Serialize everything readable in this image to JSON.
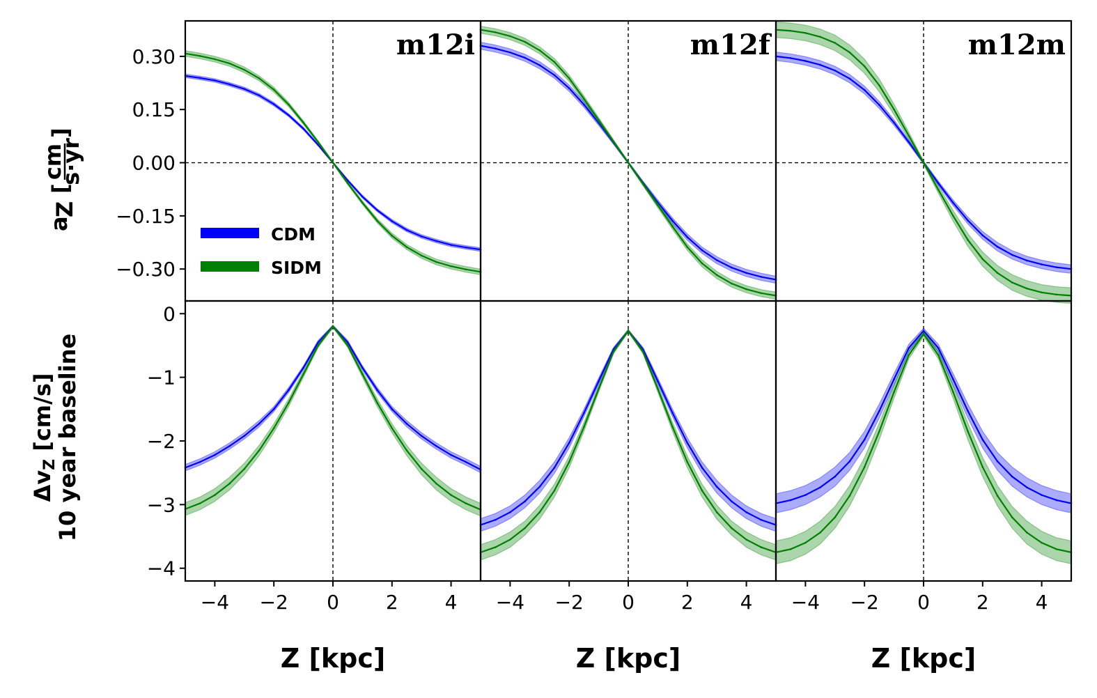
{
  "chart_data": {
    "type": "line",
    "x": [
      -5,
      -4.5,
      -4,
      -3.5,
      -3,
      -2.5,
      -2,
      -1.5,
      -1,
      -0.5,
      0,
      0.5,
      1,
      1.5,
      2,
      2.5,
      3,
      3.5,
      4,
      4.5,
      5
    ],
    "xlim": [
      -5,
      5
    ],
    "xticks": [
      -4,
      -2,
      0,
      2,
      4
    ],
    "xtick_labels": [
      "−4",
      "−2",
      "0",
      "2",
      "4"
    ],
    "xlabel": "Z [kpc]",
    "top_row": {
      "ylabel_main": "a",
      "ylabel_sub": "Z",
      "ylabel_unit_num": "cm",
      "ylabel_unit_den": "s·yr",
      "ylim": [
        -0.39,
        0.4
      ],
      "yticks": [
        0.3,
        0.15,
        0.0,
        -0.15,
        -0.3
      ],
      "ytick_labels": [
        "0.30",
        "0.15",
        "0.00",
        "−0.15",
        "−0.30"
      ]
    },
    "bottom_row": {
      "ylabel_line1_main": "Δv",
      "ylabel_line1_sub": "Z",
      "ylabel_line1_unit": " [cm/s]",
      "ylabel_line2": "10 year baseline",
      "ylim": [
        -4.2,
        0.2
      ],
      "yticks": [
        0,
        -1,
        -2,
        -3,
        -4
      ],
      "ytick_labels": [
        "0",
        "−1",
        "−2",
        "−3",
        "−4"
      ]
    },
    "legend": [
      {
        "label": "CDM",
        "color": "#0000ff"
      },
      {
        "label": "SIDM",
        "color": "#008000"
      }
    ],
    "panels": [
      {
        "title": "m12i",
        "accel": [
          {
            "name": "CDM",
            "color": "#0000ff",
            "values": [
              0.245,
              0.239,
              0.232,
              0.221,
              0.208,
              0.19,
              0.165,
              0.134,
              0.096,
              0.05,
              0.0,
              -0.05,
              -0.096,
              -0.134,
              -0.165,
              -0.19,
              -0.208,
              -0.221,
              -0.232,
              -0.239,
              -0.245
            ],
            "err": [
              0.005,
              0.005,
              0.005,
              0.005,
              0.005,
              0.005,
              0.005,
              0.004,
              0.004,
              0.003,
              0.002,
              0.003,
              0.004,
              0.004,
              0.005,
              0.005,
              0.005,
              0.005,
              0.005,
              0.005,
              0.005
            ]
          },
          {
            "name": "SIDM",
            "color": "#008000",
            "values": [
              0.308,
              0.301,
              0.292,
              0.28,
              0.262,
              0.238,
              0.206,
              0.164,
              0.113,
              0.058,
              0.0,
              -0.058,
              -0.113,
              -0.164,
              -0.206,
              -0.238,
              -0.262,
              -0.28,
              -0.292,
              -0.301,
              -0.308
            ],
            "err": [
              0.008,
              0.008,
              0.008,
              0.008,
              0.008,
              0.007,
              0.007,
              0.006,
              0.005,
              0.004,
              0.003,
              0.004,
              0.005,
              0.006,
              0.007,
              0.007,
              0.008,
              0.008,
              0.008,
              0.008,
              0.008
            ]
          }
        ],
        "dv": [
          {
            "name": "CDM",
            "color": "#0000ff",
            "values": [
              -2.42,
              -2.33,
              -2.22,
              -2.08,
              -1.92,
              -1.73,
              -1.5,
              -1.2,
              -0.85,
              -0.45,
              -0.2,
              -0.45,
              -0.85,
              -1.2,
              -1.5,
              -1.73,
              -1.92,
              -2.08,
              -2.22,
              -2.33,
              -2.45
            ],
            "err": [
              0.05,
              0.05,
              0.05,
              0.05,
              0.05,
              0.05,
              0.04,
              0.04,
              0.03,
              0.03,
              0.02,
              0.03,
              0.03,
              0.04,
              0.04,
              0.05,
              0.05,
              0.05,
              0.05,
              0.05,
              0.05
            ]
          },
          {
            "name": "SIDM",
            "color": "#008000",
            "values": [
              -3.07,
              -2.98,
              -2.85,
              -2.67,
              -2.44,
              -2.15,
              -1.8,
              -1.4,
              -0.95,
              -0.5,
              -0.2,
              -0.5,
              -0.95,
              -1.4,
              -1.8,
              -2.15,
              -2.44,
              -2.67,
              -2.85,
              -2.98,
              -3.08
            ],
            "err": [
              0.1,
              0.1,
              0.1,
              0.1,
              0.09,
              0.08,
              0.07,
              0.06,
              0.05,
              0.03,
              0.02,
              0.03,
              0.05,
              0.06,
              0.07,
              0.08,
              0.09,
              0.1,
              0.1,
              0.1,
              0.1
            ]
          }
        ]
      },
      {
        "title": "m12f",
        "accel": [
          {
            "name": "CDM",
            "color": "#0000ff",
            "values": [
              0.33,
              0.322,
              0.311,
              0.296,
              0.275,
              0.247,
              0.21,
              0.164,
              0.112,
              0.057,
              0.0,
              -0.057,
              -0.112,
              -0.164,
              -0.21,
              -0.247,
              -0.275,
              -0.296,
              -0.311,
              -0.322,
              -0.33
            ],
            "err": [
              0.01,
              0.01,
              0.01,
              0.01,
              0.01,
              0.009,
              0.009,
              0.008,
              0.007,
              0.005,
              0.003,
              0.005,
              0.007,
              0.008,
              0.009,
              0.009,
              0.01,
              0.01,
              0.01,
              0.01,
              0.01
            ]
          },
          {
            "name": "SIDM",
            "color": "#008000",
            "values": [
              0.375,
              0.368,
              0.357,
              0.341,
              0.317,
              0.284,
              0.238,
              0.18,
              0.12,
              0.06,
              0.0,
              -0.06,
              -0.12,
              -0.18,
              -0.238,
              -0.284,
              -0.317,
              -0.341,
              -0.357,
              -0.368,
              -0.375
            ],
            "err": [
              0.01,
              0.01,
              0.01,
              0.01,
              0.01,
              0.01,
              0.009,
              0.008,
              0.007,
              0.005,
              0.003,
              0.005,
              0.007,
              0.008,
              0.009,
              0.01,
              0.01,
              0.01,
              0.01,
              0.01,
              0.01
            ]
          }
        ],
        "dv": [
          {
            "name": "CDM",
            "color": "#0000ff",
            "values": [
              -3.32,
              -3.24,
              -3.12,
              -2.95,
              -2.72,
              -2.42,
              -2.03,
              -1.56,
              -1.06,
              -0.56,
              -0.27,
              -0.56,
              -1.06,
              -1.56,
              -2.03,
              -2.42,
              -2.72,
              -2.95,
              -3.12,
              -3.24,
              -3.32
            ],
            "err": [
              0.1,
              0.1,
              0.1,
              0.1,
              0.1,
              0.09,
              0.08,
              0.06,
              0.05,
              0.03,
              0.02,
              0.03,
              0.05,
              0.06,
              0.08,
              0.09,
              0.1,
              0.1,
              0.1,
              0.1,
              0.1
            ]
          },
          {
            "name": "SIDM",
            "color": "#008000",
            "values": [
              -3.75,
              -3.67,
              -3.55,
              -3.37,
              -3.12,
              -2.78,
              -2.33,
              -1.78,
              -1.18,
              -0.6,
              -0.27,
              -0.6,
              -1.18,
              -1.78,
              -2.33,
              -2.78,
              -3.12,
              -3.37,
              -3.55,
              -3.67,
              -3.75
            ],
            "err": [
              0.12,
              0.12,
              0.12,
              0.11,
              0.11,
              0.1,
              0.09,
              0.07,
              0.05,
              0.03,
              0.02,
              0.03,
              0.05,
              0.07,
              0.09,
              0.1,
              0.11,
              0.11,
              0.12,
              0.12,
              0.12
            ]
          }
        ]
      },
      {
        "title": "m12m",
        "accel": [
          {
            "name": "CDM",
            "color": "#0000ff",
            "values": [
              0.3,
              0.295,
              0.287,
              0.276,
              0.26,
              0.237,
              0.205,
              0.163,
              0.113,
              0.058,
              0.0,
              -0.058,
              -0.113,
              -0.163,
              -0.205,
              -0.237,
              -0.26,
              -0.276,
              -0.287,
              -0.295,
              -0.3
            ],
            "err": [
              0.012,
              0.012,
              0.012,
              0.012,
              0.012,
              0.012,
              0.011,
              0.01,
              0.008,
              0.006,
              0.004,
              0.006,
              0.008,
              0.01,
              0.011,
              0.012,
              0.012,
              0.012,
              0.012,
              0.012,
              0.012
            ]
          },
          {
            "name": "SIDM",
            "color": "#008000",
            "values": [
              0.375,
              0.372,
              0.366,
              0.355,
              0.338,
              0.311,
              0.272,
              0.218,
              0.15,
              0.076,
              0.0,
              -0.076,
              -0.15,
              -0.218,
              -0.272,
              -0.311,
              -0.338,
              -0.355,
              -0.366,
              -0.372,
              -0.375
            ],
            "err": [
              0.022,
              0.022,
              0.022,
              0.022,
              0.022,
              0.021,
              0.02,
              0.018,
              0.015,
              0.01,
              0.005,
              0.01,
              0.015,
              0.018,
              0.02,
              0.021,
              0.022,
              0.022,
              0.022,
              0.022,
              0.022
            ]
          }
        ],
        "dv": [
          {
            "name": "CDM",
            "color": "#0000ff",
            "values": [
              -2.98,
              -2.93,
              -2.85,
              -2.73,
              -2.56,
              -2.32,
              -1.98,
              -1.53,
              -1.03,
              -0.54,
              -0.27,
              -0.54,
              -1.03,
              -1.53,
              -1.98,
              -2.32,
              -2.56,
              -2.73,
              -2.85,
              -2.93,
              -2.98
            ],
            "err": [
              0.15,
              0.15,
              0.15,
              0.15,
              0.15,
              0.14,
              0.13,
              0.11,
              0.09,
              0.06,
              0.04,
              0.06,
              0.09,
              0.11,
              0.13,
              0.14,
              0.15,
              0.15,
              0.15,
              0.15,
              0.15
            ]
          },
          {
            "name": "SIDM",
            "color": "#008000",
            "values": [
              -3.75,
              -3.7,
              -3.6,
              -3.44,
              -3.2,
              -2.86,
              -2.41,
              -1.85,
              -1.23,
              -0.65,
              -0.32,
              -0.65,
              -1.23,
              -1.85,
              -2.41,
              -2.86,
              -3.2,
              -3.44,
              -3.6,
              -3.7,
              -3.75
            ],
            "err": [
              0.18,
              0.18,
              0.18,
              0.18,
              0.17,
              0.16,
              0.15,
              0.13,
              0.1,
              0.06,
              0.04,
              0.06,
              0.1,
              0.13,
              0.15,
              0.16,
              0.17,
              0.18,
              0.18,
              0.18,
              0.18
            ]
          }
        ]
      }
    ]
  }
}
